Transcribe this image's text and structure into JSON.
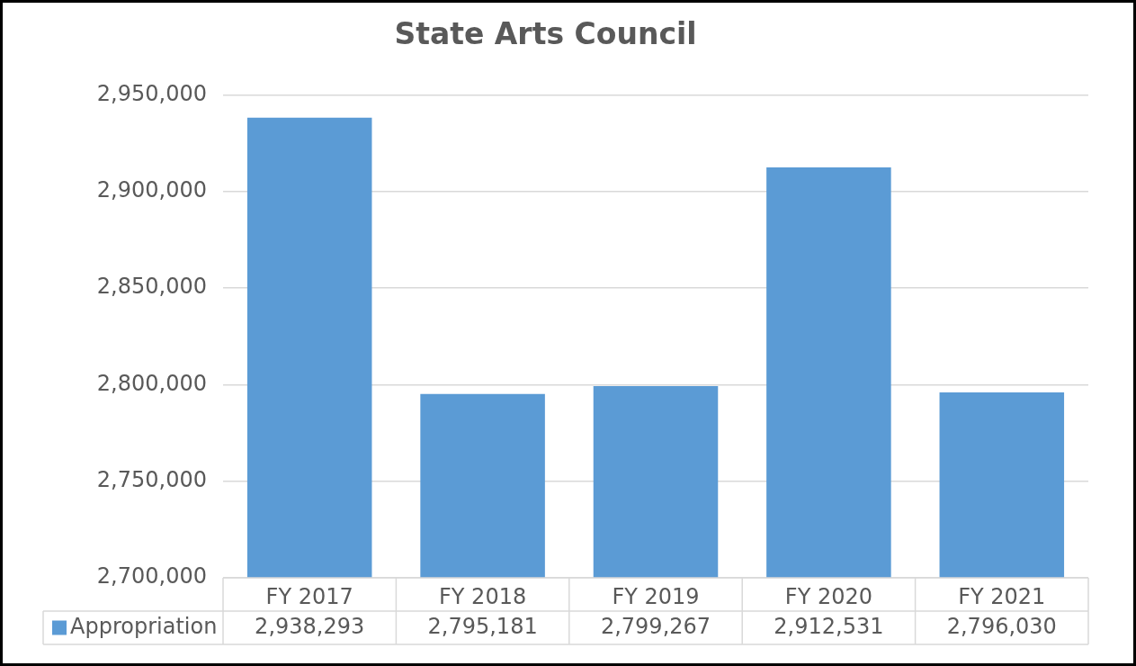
{
  "chart_data": {
    "type": "bar",
    "title": "State Arts Council",
    "categories": [
      "FY 2017",
      "FY 2018",
      "FY 2019",
      "FY 2020",
      "FY 2021"
    ],
    "series": [
      {
        "name": "Appropriation",
        "color": "#5b9bd5",
        "values": [
          2938293,
          2795181,
          2799267,
          2912531,
          2796030
        ],
        "value_labels": [
          "2,938,293",
          "2,795,181",
          "2,799,267",
          "2,912,531",
          "2,796,030"
        ]
      }
    ],
    "ylim": [
      2700000,
      2950000
    ],
    "yticks": [
      {
        "value": 2700000,
        "label": "2,700,000"
      },
      {
        "value": 2750000,
        "label": "2,750,000"
      },
      {
        "value": 2800000,
        "label": "2,800,000"
      },
      {
        "value": 2850000,
        "label": "2,850,000"
      },
      {
        "value": 2900000,
        "label": "2,900,000"
      },
      {
        "value": 2950000,
        "label": "2,950,000"
      }
    ],
    "grid": "y",
    "legend": "bottom"
  }
}
